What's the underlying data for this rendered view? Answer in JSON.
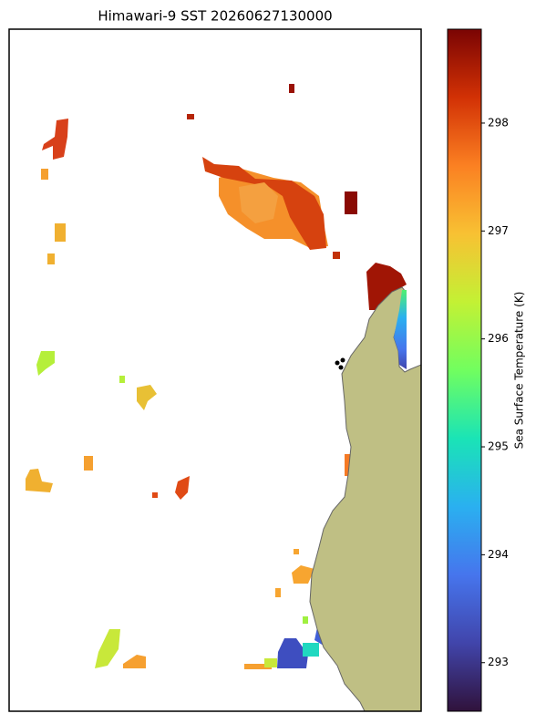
{
  "chart_data": {
    "type": "map",
    "title": "Himawari-9 SST 20260627130000",
    "colorbar": {
      "label": "Sea Surface Temperature (K)",
      "lim": [
        292.55,
        298.87
      ],
      "ticks": [
        293,
        294,
        295,
        296,
        297,
        298
      ]
    }
  }
}
